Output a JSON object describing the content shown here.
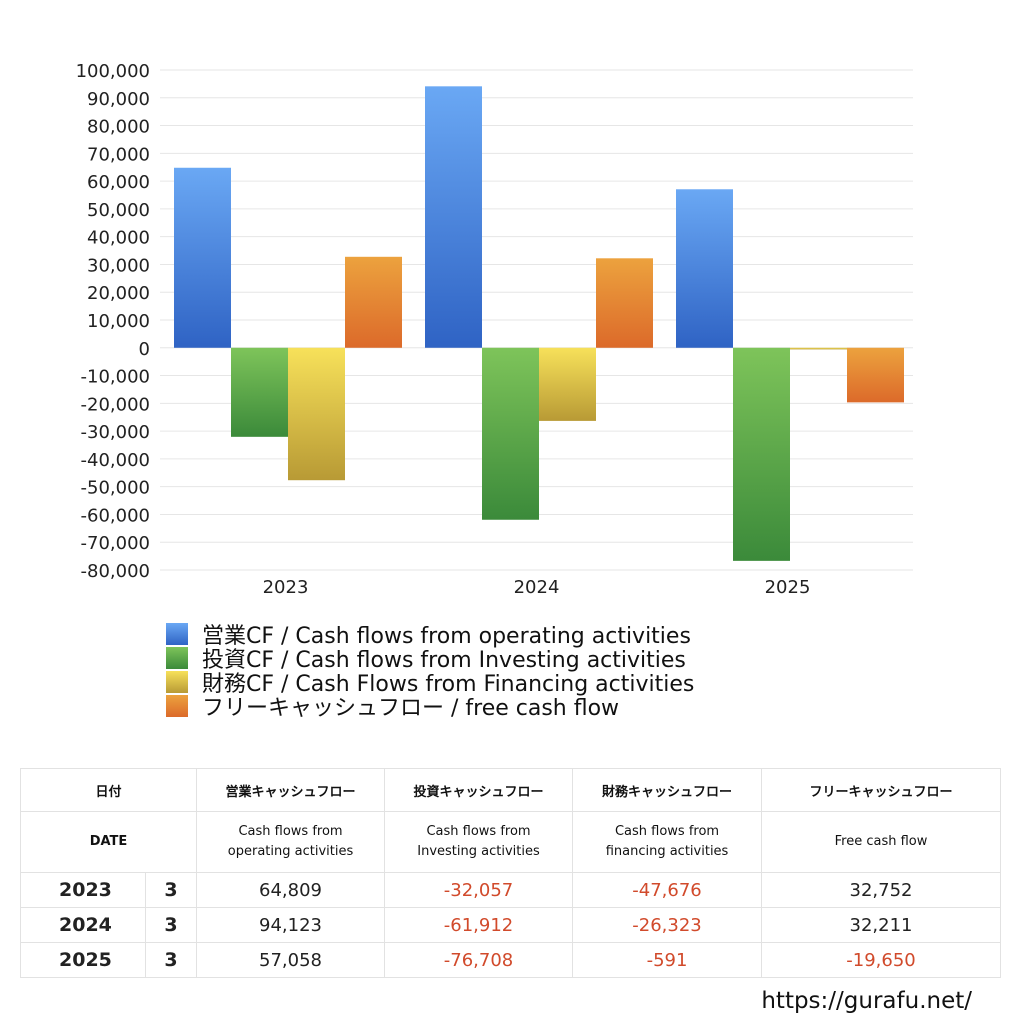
{
  "chart_data": {
    "type": "bar",
    "categories": [
      "2023",
      "2024",
      "2025"
    ],
    "series": [
      {
        "name": "営業CF / Cash flows from operating activities",
        "values": [
          64809,
          94123,
          57058
        ],
        "color_top": "#6aa8f4",
        "color_bottom": "#2f63c4"
      },
      {
        "name": "投資CF / Cash flows from Investing activities",
        "values": [
          -32057,
          -61912,
          -76708
        ],
        "color_top": "#7ec45a",
        "color_bottom": "#3b8a3a"
      },
      {
        "name": "財務CF / Cash Flows from Financing activities",
        "values": [
          -47676,
          -26323,
          -591
        ],
        "color_top": "#f7e15a",
        "color_bottom": "#b89a35"
      },
      {
        "name": "フリーキャッシュフロー / free cash flow",
        "values": [
          32752,
          32211,
          -19650
        ],
        "color_top": "#eca23e",
        "color_bottom": "#dc6a2a"
      }
    ],
    "ylim": [
      -80000,
      100000
    ],
    "yticks": [
      "100,000",
      "90,000",
      "80,000",
      "70,000",
      "60,000",
      "50,000",
      "40,000",
      "30,000",
      "20,000",
      "10,000",
      "0",
      "-10,000",
      "-20,000",
      "-30,000",
      "-40,000",
      "-50,000",
      "-60,000",
      "-70,000",
      "-80,000"
    ],
    "grid": true,
    "legend_position": "bottom"
  },
  "table": {
    "headers_jp": [
      "日付",
      "営業キャッシュフロー",
      "投資キャッシュフロー",
      "財務キャッシュフロー",
      "フリーキャッシュフロー"
    ],
    "header_date_en": "DATE",
    "headers_en": [
      [
        "Cash flows from",
        "operating activities"
      ],
      [
        "Cash flows from",
        "Investing activities"
      ],
      [
        "Cash flows from",
        "financing activities"
      ],
      [
        "Free cash flow",
        ""
      ]
    ],
    "rows": [
      {
        "year": "2023",
        "month": "3",
        "values": [
          "64,809",
          "-32,057",
          "-47,676",
          "32,752"
        ]
      },
      {
        "year": "2024",
        "month": "3",
        "values": [
          "94,123",
          "-61,912",
          "-26,323",
          "32,211"
        ]
      },
      {
        "year": "2025",
        "month": "3",
        "values": [
          "57,058",
          "-76,708",
          "-591",
          "-19,650"
        ]
      }
    ]
  },
  "footer": {
    "url": "https://gurafu.net/"
  }
}
